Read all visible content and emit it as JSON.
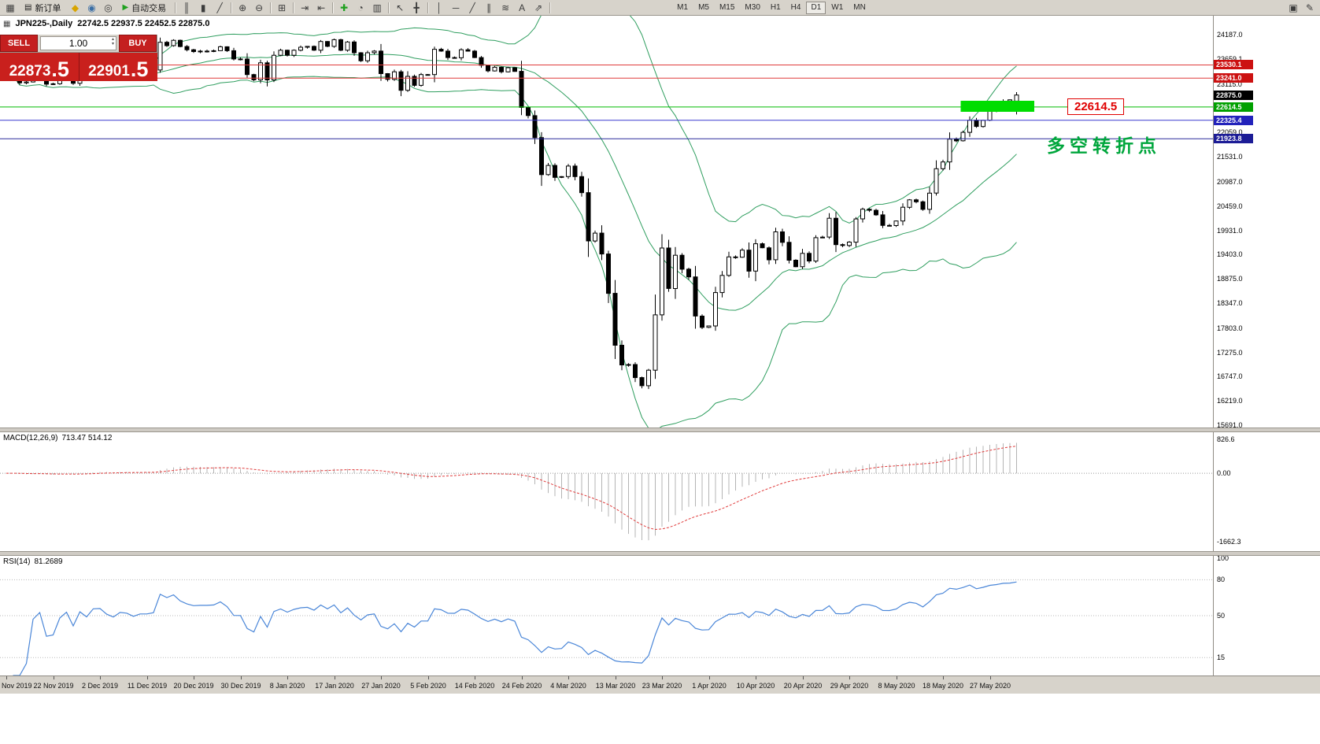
{
  "toolbar": {
    "items": [
      {
        "type": "icon",
        "glyph": "▦",
        "name": "new-chart-icon"
      },
      {
        "type": "button",
        "label": "新订单",
        "icon": "▤",
        "name": "new-order-button"
      },
      {
        "type": "icon",
        "glyph": "◆",
        "name": "metaeditor-icon",
        "color": "#d8a400"
      },
      {
        "type": "icon",
        "glyph": "◉",
        "name": "profile-icon",
        "color": "#3a6ea5"
      },
      {
        "type": "icon",
        "glyph": "◎",
        "name": "alerts-icon"
      },
      {
        "type": "button",
        "label": "自动交易",
        "icon": "▶",
        "icon_color": "#1fa01f",
        "name": "autotrading-button"
      },
      {
        "type": "sep"
      },
      {
        "type": "icon",
        "glyph": "║",
        "name": "bar-chart-icon"
      },
      {
        "type": "icon",
        "glyph": "▮",
        "name": "candlestick-chart-icon"
      },
      {
        "type": "icon",
        "glyph": "╱",
        "name": "line-chart-icon"
      },
      {
        "type": "sep"
      },
      {
        "type": "icon",
        "glyph": "⊕",
        "name": "zoom-in-icon"
      },
      {
        "type": "icon",
        "glyph": "⊖",
        "name": "zoom-out-icon"
      },
      {
        "type": "sep"
      },
      {
        "type": "icon",
        "glyph": "⊞",
        "name": "tile-windows-icon"
      },
      {
        "type": "sep"
      },
      {
        "type": "icon",
        "glyph": "⇥",
        "name": "auto-scroll-icon"
      },
      {
        "type": "icon",
        "glyph": "⇤",
        "name": "chart-shift-icon"
      },
      {
        "type": "sep"
      },
      {
        "type": "icon",
        "glyph": "✚",
        "name": "indicators-icon",
        "color": "#1fa01f"
      },
      {
        "type": "icon",
        "glyph": "◔",
        "name": "periods-icon"
      },
      {
        "type": "icon",
        "glyph": "▥",
        "name": "templates-icon"
      },
      {
        "type": "sep"
      },
      {
        "type": "icon",
        "glyph": "↖",
        "name": "cursor-icon"
      },
      {
        "type": "icon",
        "glyph": "╋",
        "name": "crosshair-icon"
      },
      {
        "type": "sep"
      },
      {
        "type": "icon",
        "glyph": "│",
        "name": "vertical-line-icon"
      },
      {
        "type": "icon",
        "glyph": "─",
        "name": "horizontal-line-icon"
      },
      {
        "type": "icon",
        "glyph": "╱",
        "name": "trendline-icon"
      },
      {
        "type": "icon",
        "glyph": "∥",
        "name": "equidistant-channel-icon"
      },
      {
        "type": "icon",
        "glyph": "≋",
        "name": "fibonacci-icon"
      },
      {
        "type": "icon",
        "glyph": "A",
        "name": "text-label-icon"
      },
      {
        "type": "icon",
        "glyph": "⇗",
        "name": "arrow-tool-icon"
      },
      {
        "type": "sep"
      },
      {
        "type": "gap"
      },
      {
        "type": "timeframes"
      },
      {
        "type": "spacer"
      },
      {
        "type": "icon",
        "glyph": "▣",
        "name": "chart-window-icon"
      },
      {
        "type": "icon",
        "glyph": "✎",
        "name": "edit-icon"
      }
    ],
    "timeframes": {
      "items": [
        "M1",
        "M5",
        "M15",
        "M30",
        "H1",
        "H4",
        "D1",
        "W1",
        "MN"
      ],
      "active": "D1"
    }
  },
  "chart_title": {
    "icon": "▦",
    "symbol": "JPN225-,Daily",
    "ohlc": "22742.5 22937.5 22452.5 22875.0"
  },
  "trade_panel": {
    "sell_label": "SELL",
    "buy_label": "BUY",
    "volume": "1.00",
    "spinner_up": "▴",
    "spinner_down": "▾",
    "sell_price_main": "22873",
    "sell_price_frac": ".5",
    "buy_price_main": "22901",
    "buy_price_frac": ".5"
  },
  "chart_data": {
    "type": "candlestick",
    "symbol": "JPN225",
    "timeframe": "Daily",
    "last_candle": {
      "open": 22742.5,
      "high": 22937.5,
      "low": 22452.5,
      "close": 22875.0
    },
    "closes": [
      23320,
      23300,
      23140,
      23160,
      23300,
      23340,
      23110,
      23120,
      23290,
      23370,
      23130,
      23410,
      23290,
      23520,
      23530,
      23380,
      23300,
      23430,
      23410,
      23330,
      23390,
      23390,
      23420,
      24023,
      23950,
      24066,
      23930,
      23860,
      23820,
      23830,
      23830,
      23840,
      23925,
      23840,
      23660,
      23657,
      23320,
      23205,
      23575,
      23204,
      23740,
      23850,
      23740,
      23850,
      23915,
      23933,
      23850,
      24040,
      23935,
      24080,
      23850,
      24030,
      23795,
      23620,
      23795,
      23830,
      23340,
      23215,
      23380,
      22977,
      23280,
      23085,
      23320,
      23320,
      23870,
      23830,
      23690,
      23685,
      23860,
      23830,
      23690,
      23520,
      23400,
      23480,
      23380,
      23470,
      23390,
      22605,
      22426,
      21948,
      21143,
      21344,
      21083,
      21100,
      21330,
      21100,
      20750,
      19699,
      19870,
      19416,
      18560,
      17431,
      17002,
      17011,
      16727,
      16550,
      16888,
      18092,
      19546,
      18665,
      19389,
      19085,
      18917,
      18065,
      17820,
      17850,
      18576,
      18950,
      19353,
      19345,
      19500,
      19043,
      19638,
      19550,
      19290,
      19897,
      19669,
      19280,
      19138,
      19429,
      19262,
      19771,
      19783,
      20193,
      19619,
      19600,
      19674,
      20179,
      20390,
      20366,
      20267,
      20037,
      20033,
      20133,
      20433,
      20595,
      20552,
      20388,
      20741,
      21271,
      21419,
      21916,
      21878,
      22062,
      22326,
      22190,
      22325,
      22528,
      22613,
      22742,
      22770,
      22875
    ],
    "x_labels": [
      "Nov 2019",
      "22 Nov 2019",
      "2 Dec 2019",
      "11 Dec 2019",
      "20 Dec 2019",
      "30 Dec 2019",
      "8 Jan 2020",
      "17 Jan 2020",
      "27 Jan 2020",
      "5 Feb 2020",
      "14 Feb 2020",
      "24 Feb 2020",
      "4 Mar 2020",
      "13 Mar 2020",
      "23 Mar 2020",
      "1 Apr 2020",
      "10 Apr 2020",
      "20 Apr 2020",
      "29 Apr 2020",
      "8 May 2020",
      "18 May 2020",
      "27 May 2020"
    ],
    "x_label_step": 7,
    "ylim": [
      15640,
      24600
    ],
    "y_axis_labels": [
      "24187.0",
      "23659.1",
      "23115.0",
      "22059.0",
      "21531.0",
      "20987.0",
      "20459.0",
      "19931.0",
      "19403.0",
      "18875.0",
      "18347.0",
      "17803.0",
      "17275.0",
      "16747.0",
      "16219.0",
      "15691.0"
    ],
    "bollinger": {
      "period": 20,
      "deviation": 2,
      "color": "#2f9e5f"
    },
    "levels": [
      {
        "value": 23530.1,
        "label": "23530.1",
        "line_color": "#e03c3c",
        "box_color": "#cc1111"
      },
      {
        "value": 23241.0,
        "label": "23241.0",
        "line_color": "#e03c3c",
        "box_color": "#cc1111"
      },
      {
        "value": 22614.5,
        "label": "22614.5",
        "line_color": "#00bb00",
        "box_color": "#00a000"
      },
      {
        "value": 22325.4,
        "label": "22325.4",
        "line_color": "#3a3ad0",
        "box_color": "#2222bb"
      },
      {
        "value": 21923.8,
        "label": "21923.8",
        "line_color": "#2b2b9c",
        "box_color": "#1c1c96"
      }
    ],
    "current_price": {
      "value": 22875.0,
      "label": "22875.0",
      "box_color": "#000000"
    },
    "annotations": {
      "highlight_box": {
        "from_index": 143,
        "to_index": 154,
        "price_top": 22750,
        "price_bottom": 22510,
        "color": "#00dd00"
      },
      "price_callout": {
        "text": "22614.5",
        "color": "#e00000",
        "x": 1356,
        "price": 22614.5
      },
      "note_text": {
        "text": "多空转折点",
        "color": "#00a63c",
        "x": 1330,
        "price": 21860
      }
    },
    "macd": {
      "label": "MACD(12,26,9)",
      "values_text": "713.47 514.12",
      "fast": 12,
      "slow": 26,
      "signal": 9,
      "axis_labels": [
        "826.6",
        "0.00",
        "-1662.3"
      ],
      "axis_values": [
        826.6,
        0,
        -1662.3
      ],
      "ylim": [
        -1900,
        1000
      ],
      "histogram_color": "#b4b4b4",
      "signal_color": "#e03c3c"
    },
    "rsi": {
      "label": "RSI(14)",
      "value_text": "81.2689",
      "period": 14,
      "axis_labels": [
        "100",
        "80",
        "50",
        "15"
      ],
      "axis_values": [
        100,
        80,
        50,
        15
      ],
      "levels": [
        80,
        50,
        15
      ],
      "line_color": "#4a86d8"
    }
  }
}
